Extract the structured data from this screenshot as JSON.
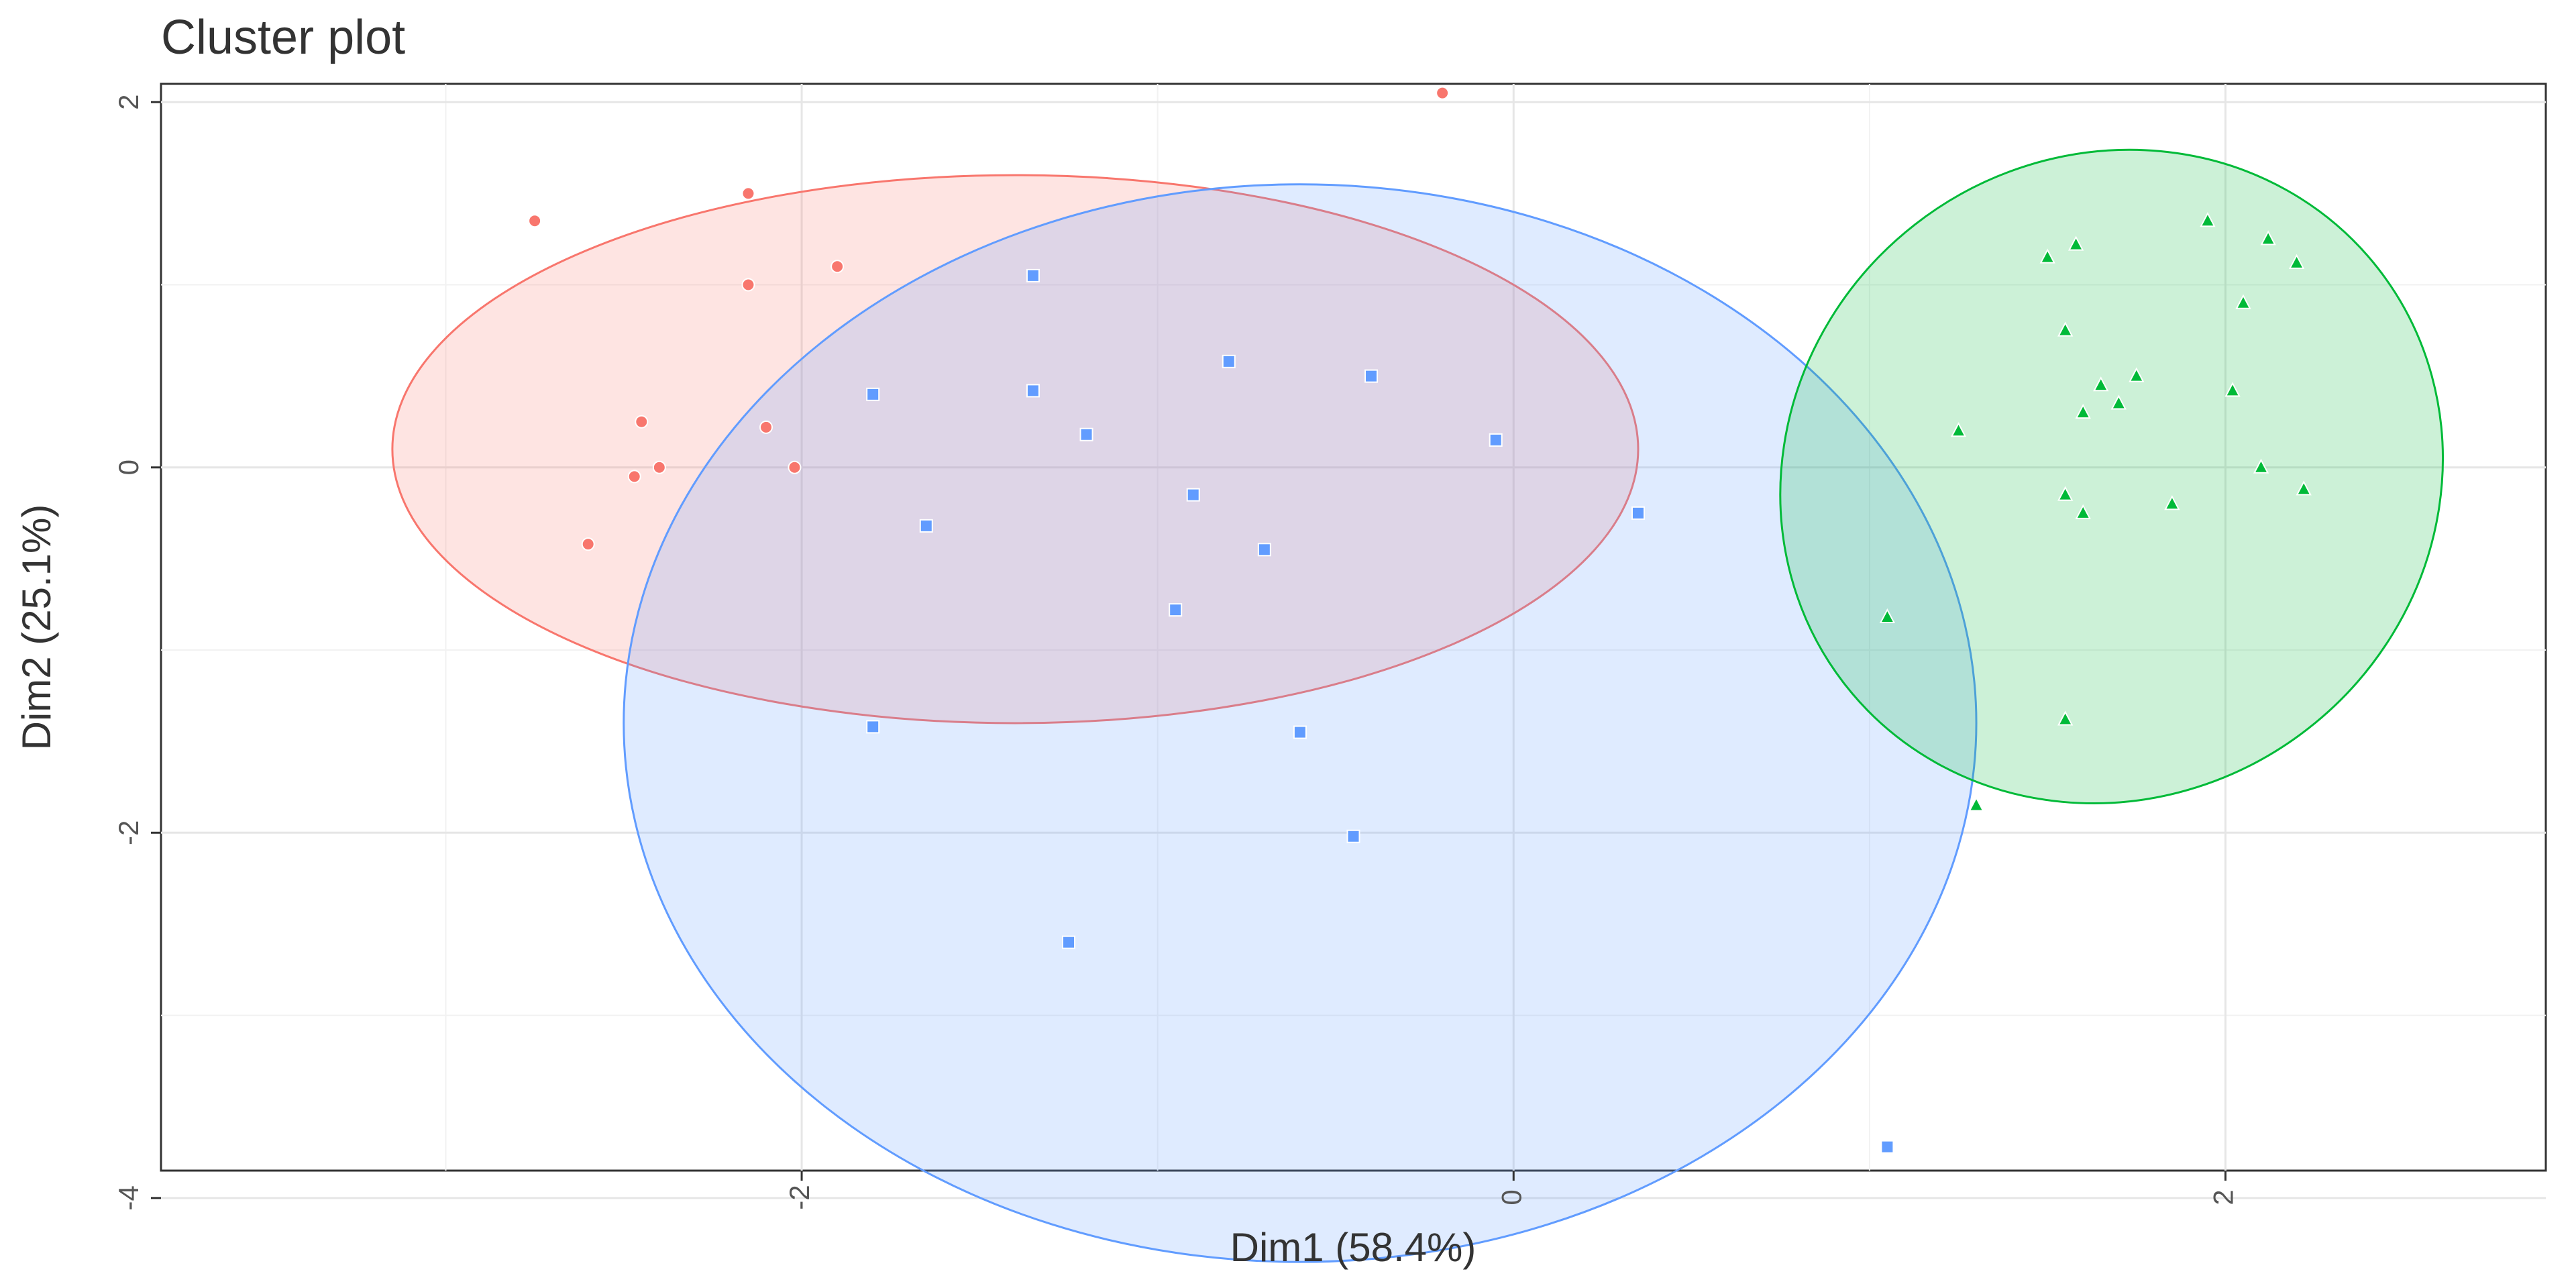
{
  "chart_data": {
    "type": "scatter",
    "title": "Cluster plot",
    "xlabel": "Dim1 (58.4%)",
    "ylabel": "Dim2 (25.1%)",
    "xlim": [
      -3.8,
      2.9
    ],
    "ylim": [
      -3.85,
      2.1
    ],
    "x_ticks": [
      {
        "value": -2,
        "label": "-2"
      },
      {
        "value": 0,
        "label": "0"
      },
      {
        "value": 2,
        "label": "2"
      }
    ],
    "y_ticks": [
      {
        "value": 2,
        "label": "2"
      },
      {
        "value": 0,
        "label": "0"
      },
      {
        "value": -2,
        "label": "-2"
      },
      {
        "value": -4,
        "label": "-4"
      }
    ],
    "grid": true,
    "legend": "none",
    "series": [
      {
        "color": "#F8766D",
        "fill": "#F8766D",
        "ellipse": {
          "cx": -1.4,
          "cy": 0.1,
          "rx": 1.75,
          "ry": 1.5,
          "angle": 0
        },
        "points": [
          {
            "x": -2.75,
            "y": 1.35
          },
          {
            "x": -2.15,
            "y": 1.5
          },
          {
            "x": -2.15,
            "y": 1.0
          },
          {
            "x": -1.9,
            "y": 1.1
          },
          {
            "x": -2.45,
            "y": 0.25
          },
          {
            "x": -2.47,
            "y": -0.05
          },
          {
            "x": -2.4,
            "y": 0.0
          },
          {
            "x": -2.6,
            "y": -0.42
          },
          {
            "x": -2.1,
            "y": 0.22
          },
          {
            "x": -2.02,
            "y": 0.0
          },
          {
            "x": -0.2,
            "y": 2.05
          }
        ]
      },
      {
        "color": "#619CFF",
        "fill": "#619CFF",
        "ellipse": {
          "cx": -0.6,
          "cy": -1.4,
          "rx": 1.9,
          "ry": 2.95,
          "angle": 0
        },
        "points": [
          {
            "x": -1.8,
            "y": 0.4
          },
          {
            "x": -1.35,
            "y": 1.05
          },
          {
            "x": -1.35,
            "y": 0.42
          },
          {
            "x": -1.2,
            "y": 0.18
          },
          {
            "x": -0.8,
            "y": 0.58
          },
          {
            "x": -0.4,
            "y": 0.5
          },
          {
            "x": -0.9,
            "y": -0.15
          },
          {
            "x": -0.7,
            "y": -0.45
          },
          {
            "x": -1.65,
            "y": -0.32
          },
          {
            "x": -0.95,
            "y": -0.78
          },
          {
            "x": -1.8,
            "y": -1.42
          },
          {
            "x": -0.6,
            "y": -1.45
          },
          {
            "x": -0.45,
            "y": -2.02
          },
          {
            "x": -1.25,
            "y": -2.6
          },
          {
            "x": -0.05,
            "y": 0.15
          },
          {
            "x": 0.35,
            "y": -0.25
          },
          {
            "x": 1.05,
            "y": -3.72
          }
        ]
      },
      {
        "color": "#00BA38",
        "fill": "#00BA38",
        "ellipse": {
          "cx": 1.68,
          "cy": -0.05,
          "rx": 0.95,
          "ry": 1.75,
          "angle": 38
        },
        "points": [
          {
            "x": 1.05,
            "y": -0.82
          },
          {
            "x": 1.25,
            "y": 0.2
          },
          {
            "x": 1.3,
            "y": -1.85
          },
          {
            "x": 1.5,
            "y": 1.15
          },
          {
            "x": 1.58,
            "y": 1.22
          },
          {
            "x": 1.55,
            "y": 0.75
          },
          {
            "x": 1.6,
            "y": 0.3
          },
          {
            "x": 1.65,
            "y": 0.45
          },
          {
            "x": 1.7,
            "y": 0.35
          },
          {
            "x": 1.75,
            "y": 0.5
          },
          {
            "x": 1.55,
            "y": -0.15
          },
          {
            "x": 1.6,
            "y": -0.25
          },
          {
            "x": 1.55,
            "y": -1.38
          },
          {
            "x": 1.85,
            "y": -0.2
          },
          {
            "x": 1.95,
            "y": 1.35
          },
          {
            "x": 2.05,
            "y": 0.9
          },
          {
            "x": 2.12,
            "y": 1.25
          },
          {
            "x": 2.2,
            "y": 1.12
          },
          {
            "x": 2.02,
            "y": 0.42
          },
          {
            "x": 2.1,
            "y": 0.0
          },
          {
            "x": 2.22,
            "y": -0.12
          }
        ]
      }
    ]
  }
}
